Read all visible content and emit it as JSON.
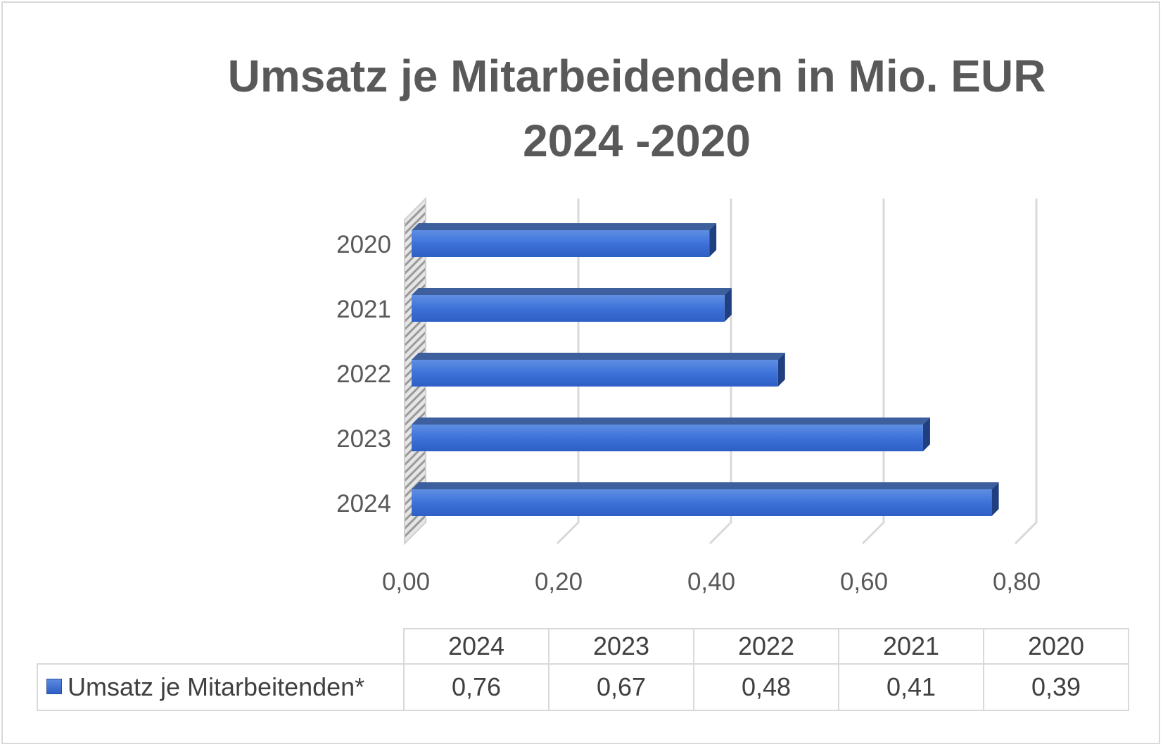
{
  "chart_data": {
    "type": "bar",
    "orientation": "horizontal",
    "title": "Umsatz je Mitarbeidenden in Mio. EUR 2024 -2020",
    "title_lines": [
      "Umsatz je Mitarbeidenden in Mio. EUR",
      "2024 -2020"
    ],
    "categories": [
      "2024",
      "2023",
      "2022",
      "2021",
      "2020"
    ],
    "series": [
      {
        "name": "Umsatz je Mitarbeitenden*",
        "values": [
          0.76,
          0.67,
          0.48,
          0.41,
          0.39
        ],
        "color": "#3a6fd8"
      }
    ],
    "xlim": [
      0,
      0.8
    ],
    "x_ticks": [
      0,
      0.2,
      0.4,
      0.6,
      0.8
    ],
    "x_tick_labels": [
      "0,00",
      "0,20",
      "0,40",
      "0,60",
      "0,80"
    ],
    "grid": true,
    "three_d": true,
    "data_table": {
      "header": [
        "2024",
        "2023",
        "2022",
        "2021",
        "2020"
      ],
      "row_label": "Umsatz je Mitarbeitenden*",
      "values": [
        "0,76",
        "0,67",
        "0,48",
        "0,41",
        "0,39"
      ]
    }
  }
}
